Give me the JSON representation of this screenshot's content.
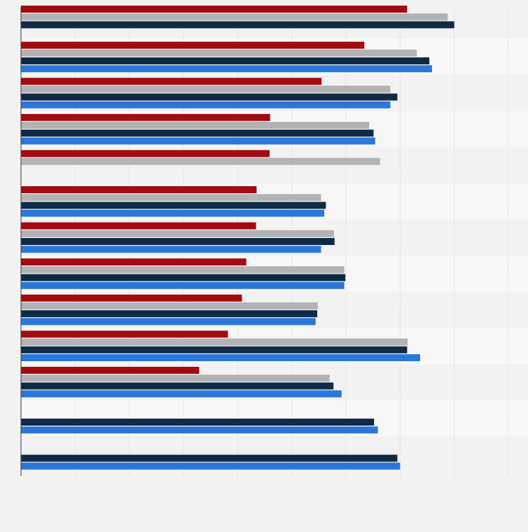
{
  "chart_data": {
    "type": "bar",
    "orientation": "horizontal",
    "grid": true,
    "xlim": [
      0,
      90
    ],
    "categories": [
      "",
      "",
      "",
      "",
      "",
      "",
      "",
      "",
      "",
      "",
      "",
      "",
      ""
    ],
    "series": [
      {
        "color": "#a30b0f",
        "values": [
          71.3,
          63.4,
          55.5,
          46.0,
          45.9,
          43.5,
          43.4,
          41.6,
          40.8,
          38.2,
          32.9,
          null,
          null
        ]
      },
      {
        "color": "#b3b3b5",
        "values": [
          78.8,
          73.1,
          68.2,
          64.3,
          66.3,
          55.4,
          57.8,
          59.7,
          54.8,
          71.4,
          57.0,
          null,
          null
        ]
      },
      {
        "color": "#0f2a45",
        "values": [
          80.0,
          75.4,
          69.5,
          65.1,
          null,
          56.3,
          57.9,
          59.9,
          54.7,
          71.3,
          57.7,
          65.2,
          69.5
        ]
      },
      {
        "color": "#2b77d9",
        "values": [
          null,
          75.9,
          68.2,
          65.4,
          null,
          56.0,
          55.4,
          59.7,
          54.4,
          73.7,
          59.2,
          65.9,
          70.0
        ]
      }
    ]
  }
}
